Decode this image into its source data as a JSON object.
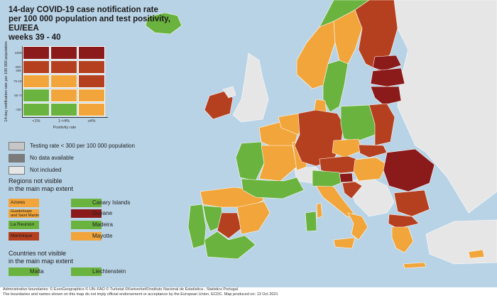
{
  "title": {
    "line1": "14-day COVID-19 case notification rate",
    "line2": "per 100 000 population and test positivity, EU/EEA",
    "line3": "weeks 39 - 40"
  },
  "colors": {
    "sea": "#b9d3e6",
    "dark_red": "#8b1a1a",
    "red": "#b5401f",
    "orange": "#f1a53a",
    "green": "#6ab33e",
    "grey_testing": "#c6c6c6",
    "dark_grey": "#7b7b7b",
    "not_included": "#e6e6e6"
  },
  "matrix": {
    "y_axis_title": "14-day notification rate per 100 000 population",
    "y_ticks": [
      "≥500",
      "200-499",
      "75-199",
      "50-74",
      "<50"
    ],
    "x_ticks": [
      "<1%",
      "1-<4%",
      "≥4%"
    ],
    "x_axis_title": "Positivity rate",
    "cells": [
      [
        "dark_red",
        "dark_red",
        "dark_red"
      ],
      [
        "red",
        "red",
        "red"
      ],
      [
        "orange",
        "orange",
        "red"
      ],
      [
        "green",
        "orange",
        "orange"
      ],
      [
        "green",
        "green",
        "orange"
      ]
    ]
  },
  "legend": {
    "testing_rate": "Testing rate < 300 per 100 000 population",
    "no_data": "No data available",
    "not_included": "Not included"
  },
  "regions_section": {
    "heading_line1": "Regions not visible",
    "heading_line2": "in the main map extent",
    "items": [
      {
        "label": "Azores",
        "color": "orange"
      },
      {
        "label": "Canary Islands",
        "color": "green"
      },
      {
        "label_line1": "Guadeloupe",
        "label_line2": "and Saint Martin",
        "color": "orange"
      },
      {
        "label": "Guyane",
        "color": "dark_red"
      },
      {
        "label": "La Reunion",
        "color": "green"
      },
      {
        "label": "Madeira",
        "color": "green"
      },
      {
        "label": "Martinique",
        "color": "red"
      },
      {
        "label": "Mayotte",
        "color": "orange"
      }
    ]
  },
  "countries_section": {
    "heading_line1": "Countries not visible",
    "heading_line2": "in the main map extent",
    "items": [
      {
        "label": "Malta",
        "color": "green"
      },
      {
        "label": "Liechtenstein",
        "color": "green"
      }
    ]
  },
  "footer": {
    "line1": "Administrative boundaries: © EuroGeographics © UN–FAO © Turkstat.©Kartverket©Instituto Nacional de Estatística - Statistics Portugal.",
    "line2": "The boundaries and names shown on this map do not imply official endorsement or acceptance by the European Union. ECDC. Map produced on: 13 Oct 2021"
  },
  "map_regions": [
    {
      "name": "iceland",
      "color": "green"
    },
    {
      "name": "ireland",
      "color": "red"
    },
    {
      "name": "northern-ireland",
      "color": "not_included"
    },
    {
      "name": "great-britain",
      "color": "not_included"
    },
    {
      "name": "norway-south",
      "color": "orange"
    },
    {
      "name": "norway-north",
      "color": "green"
    },
    {
      "name": "sweden-north",
      "color": "orange"
    },
    {
      "name": "sweden-south",
      "color": "green"
    },
    {
      "name": "finland",
      "color": "red"
    },
    {
      "name": "denmark",
      "color": "orange"
    },
    {
      "name": "estonia",
      "color": "dark_red"
    },
    {
      "name": "latvia",
      "color": "dark_red"
    },
    {
      "name": "lithuania",
      "color": "dark_red"
    },
    {
      "name": "portugal",
      "color": "green"
    },
    {
      "name": "spain-north",
      "color": "orange"
    },
    {
      "name": "spain-west",
      "color": "green"
    },
    {
      "name": "spain-madrid",
      "color": "red"
    },
    {
      "name": "spain-south",
      "color": "green"
    },
    {
      "name": "spain-east",
      "color": "orange"
    },
    {
      "name": "france-north",
      "color": "orange"
    },
    {
      "name": "france-west",
      "color": "green"
    },
    {
      "name": "france-center",
      "color": "orange"
    },
    {
      "name": "france-south",
      "color": "green"
    },
    {
      "name": "france-east",
      "color": "orange"
    },
    {
      "name": "benelux",
      "color": "orange"
    },
    {
      "name": "germany",
      "color": "red"
    },
    {
      "name": "switzerland",
      "color": "not_included"
    },
    {
      "name": "austria",
      "color": "red"
    },
    {
      "name": "italy-north",
      "color": "green"
    },
    {
      "name": "italy-center",
      "color": "orange"
    },
    {
      "name": "italy-south",
      "color": "orange"
    },
    {
      "name": "sicily",
      "color": "orange"
    },
    {
      "name": "sardinia",
      "color": "green"
    },
    {
      "name": "corsica",
      "color": "orange"
    },
    {
      "name": "poland-west",
      "color": "green"
    },
    {
      "name": "poland-east",
      "color": "red"
    },
    {
      "name": "czechia",
      "color": "orange"
    },
    {
      "name": "slovakia",
      "color": "red"
    },
    {
      "name": "hungary",
      "color": "orange"
    },
    {
      "name": "slovenia",
      "color": "dark_red"
    },
    {
      "name": "croatia",
      "color": "red"
    },
    {
      "name": "balkans",
      "color": "not_included"
    },
    {
      "name": "romania",
      "color": "dark_red"
    },
    {
      "name": "bulgaria",
      "color": "red"
    },
    {
      "name": "greece",
      "color": "orange"
    },
    {
      "name": "greece-north",
      "color": "red"
    },
    {
      "name": "crete",
      "color": "orange"
    },
    {
      "name": "cyprus",
      "color": "orange"
    },
    {
      "name": "turkey",
      "color": "not_included"
    },
    {
      "name": "eastern-europe",
      "color": "not_included"
    }
  ]
}
